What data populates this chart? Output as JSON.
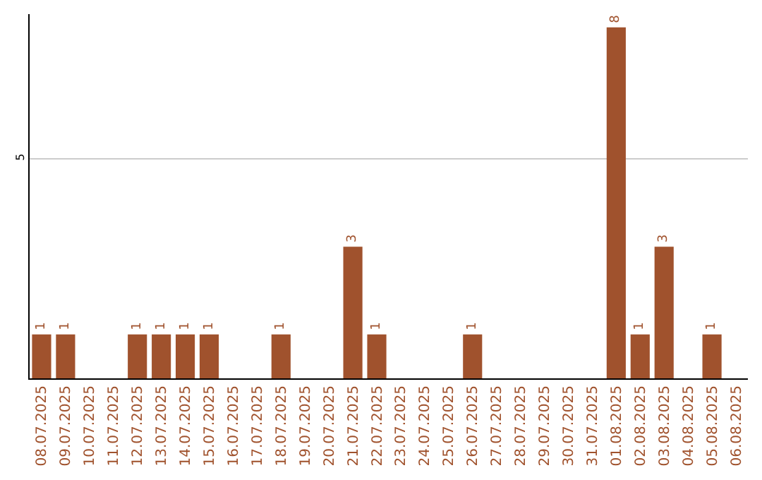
{
  "chart_data": {
    "type": "bar",
    "categories": [
      "08.07.2025",
      "09.07.2025",
      "10.07.2025",
      "11.07.2025",
      "12.07.2025",
      "13.07.2025",
      "14.07.2025",
      "15.07.2025",
      "16.07.2025",
      "17.07.2025",
      "18.07.2025",
      "19.07.2025",
      "20.07.2025",
      "21.07.2025",
      "22.07.2025",
      "23.07.2025",
      "24.07.2025",
      "25.07.2025",
      "26.07.2025",
      "27.07.2025",
      "28.07.2025",
      "29.07.2025",
      "30.07.2025",
      "31.07.2025",
      "01.08.2025",
      "02.08.2025",
      "03.08.2025",
      "04.08.2025",
      "05.08.2025",
      "06.08.2025"
    ],
    "values": [
      1,
      1,
      0,
      0,
      1,
      1,
      1,
      1,
      0,
      0,
      1,
      0,
      0,
      3,
      1,
      0,
      0,
      0,
      1,
      0,
      0,
      0,
      0,
      0,
      8,
      1,
      3,
      0,
      1,
      0
    ],
    "value_labels": [
      "1",
      "1",
      null,
      null,
      "1",
      "1",
      "1",
      "1",
      null,
      null,
      "1",
      null,
      null,
      "3",
      "1",
      null,
      null,
      null,
      "1",
      null,
      null,
      null,
      null,
      null,
      "8",
      "1",
      "3",
      null,
      "1",
      null
    ],
    "color": "#a0522d",
    "ylim": [
      0,
      8.3
    ],
    "yticks": [
      5
    ],
    "grid": "y",
    "legend": false
  }
}
